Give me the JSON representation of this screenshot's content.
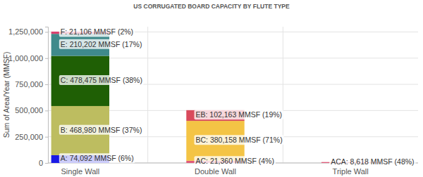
{
  "chart_data": {
    "type": "bar",
    "title": "US CORRUGATED BOARD CAPACITY BY FLUTE TYPE",
    "y_label": "Sum of Area/Year (MMSF)",
    "categories": [
      "Single Wall",
      "Double Wall",
      "Triple Wall"
    ],
    "stacked": true,
    "data_labels": true,
    "grid": true,
    "ylim": [
      0,
      1300000
    ],
    "yticks": [
      0,
      {
        "value": 250000,
        "label": "250,000"
      },
      {
        "value": 500000,
        "label": "500,000"
      },
      {
        "value": 750000,
        "label": "750,000"
      },
      {
        "value": 1000000,
        "label": "1,000,000"
      },
      {
        "value": 1250000,
        "label": "1,250,000"
      }
    ],
    "series": [
      {
        "color": "#1a1ae6",
        "values": [
          74092,
          null,
          null
        ],
        "value_labels": [
          "A: 74,092 MMSF (6%)",
          null,
          null
        ]
      },
      {
        "color": "#bdbd60",
        "values": [
          468980,
          null,
          null
        ],
        "value_labels": [
          "B: 468,980 MMSF (37%)",
          null,
          null
        ]
      },
      {
        "color": "#1f5f05",
        "values": [
          478475,
          null,
          null
        ],
        "value_labels": [
          "C: 478,475 MMSF (38%)",
          null,
          null
        ]
      },
      {
        "color": "#3f8a8c",
        "values": [
          210202,
          null,
          null
        ],
        "value_labels": [
          "E: 210,202 MMSF (17%)",
          null,
          null
        ]
      },
      {
        "color": "#d9406e",
        "values": [
          21106,
          null,
          null
        ],
        "value_labels": [
          "F: 21,106 MMSF (2%)",
          null,
          null
        ]
      },
      {
        "color": "#e05a7a",
        "values": [
          null,
          21360,
          null
        ],
        "value_labels": [
          null,
          "AC: 21,360 MMSF (4%)",
          null
        ]
      },
      {
        "color": "#f4c445",
        "values": [
          null,
          380158,
          null
        ],
        "value_labels": [
          null,
          "BC: 380,158 MMSF (71%)",
          null
        ]
      },
      {
        "color": "#d94a5c",
        "values": [
          null,
          102163,
          null
        ],
        "value_labels": [
          null,
          "EB: 102,163 MMSF (19%)",
          null
        ]
      },
      {
        "color": "#e05a7a",
        "values": [
          null,
          null,
          8618
        ],
        "value_labels": [
          null,
          null,
          "ACA: 8,618 MMSF (48%)"
        ]
      }
    ]
  }
}
